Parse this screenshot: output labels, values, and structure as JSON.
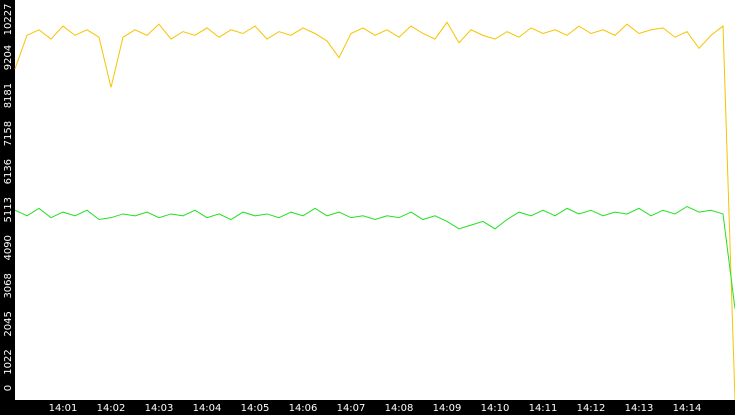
{
  "chart_data": {
    "type": "line",
    "x": [
      840,
      840.25,
      840.5,
      840.75,
      841,
      841.25,
      841.5,
      841.75,
      842,
      842.25,
      842.5,
      842.75,
      843,
      843.25,
      843.5,
      843.75,
      844,
      844.25,
      844.5,
      844.75,
      845,
      845.25,
      845.5,
      845.75,
      846,
      846.25,
      846.5,
      846.75,
      847,
      847.25,
      847.5,
      847.75,
      848,
      848.25,
      848.5,
      848.75,
      849,
      849.25,
      849.5,
      849.75,
      850,
      850.25,
      850.5,
      850.75,
      851,
      851.25,
      851.5,
      851.75,
      852,
      852.25,
      852.5,
      852.75,
      853,
      853.25,
      853.5,
      853.75,
      854,
      854.25,
      854.5,
      854.75,
      855
    ],
    "series": [
      {
        "color": "#f5c400",
        "values": [
          8900,
          9800,
          9950,
          9700,
          10050,
          9800,
          9950,
          9750,
          8400,
          9750,
          9950,
          9800,
          10100,
          9700,
          9900,
          9800,
          10000,
          9750,
          9950,
          9850,
          10050,
          9700,
          9900,
          9800,
          10000,
          9850,
          9650,
          9200,
          9850,
          10000,
          9800,
          9950,
          9750,
          10050,
          9850,
          9700,
          10150,
          9600,
          9950,
          9800,
          9700,
          9900,
          9750,
          10000,
          9850,
          9950,
          9800,
          10050,
          9850,
          9950,
          9800,
          10100,
          9850,
          9950,
          10000,
          9750,
          9900,
          9450,
          9800,
          10050,
          0
        ]
      },
      {
        "color": "#22e022",
        "values": [
          5100,
          4950,
          5150,
          4900,
          5050,
          4950,
          5100,
          4850,
          4900,
          5000,
          4950,
          5050,
          4900,
          5000,
          4950,
          5100,
          4900,
          5000,
          4850,
          5050,
          4950,
          5000,
          4900,
          5050,
          4950,
          5150,
          4950,
          5050,
          4900,
          4950,
          4850,
          4950,
          4900,
          5050,
          4850,
          4950,
          4800,
          4600,
          4700,
          4800,
          4600,
          4850,
          5050,
          4950,
          5100,
          4950,
          5150,
          5000,
          5100,
          4950,
          5050,
          5000,
          5150,
          4950,
          5100,
          5000,
          5200,
          5050,
          5100,
          5000,
          2450
        ]
      }
    ],
    "xlim": [
      840,
      855
    ],
    "xticks": [
      {
        "value": 841,
        "label": "14:01"
      },
      {
        "value": 842,
        "label": "14:02"
      },
      {
        "value": 843,
        "label": "14:03"
      },
      {
        "value": 844,
        "label": "14:04"
      },
      {
        "value": 845,
        "label": "14:05"
      },
      {
        "value": 846,
        "label": "14:06"
      },
      {
        "value": 847,
        "label": "14:07"
      },
      {
        "value": 848,
        "label": "14:08"
      },
      {
        "value": 849,
        "label": "14:09"
      },
      {
        "value": 850,
        "label": "14:10"
      },
      {
        "value": 851,
        "label": "14:11"
      },
      {
        "value": 852,
        "label": "14:12"
      },
      {
        "value": 853,
        "label": "14:13"
      },
      {
        "value": 854,
        "label": "14:14"
      }
    ],
    "ylim": [
      0,
      10750
    ],
    "yticks": [
      0,
      1022,
      2045,
      3068,
      4090,
      5113,
      6136,
      7158,
      8181,
      9204,
      10227
    ]
  }
}
